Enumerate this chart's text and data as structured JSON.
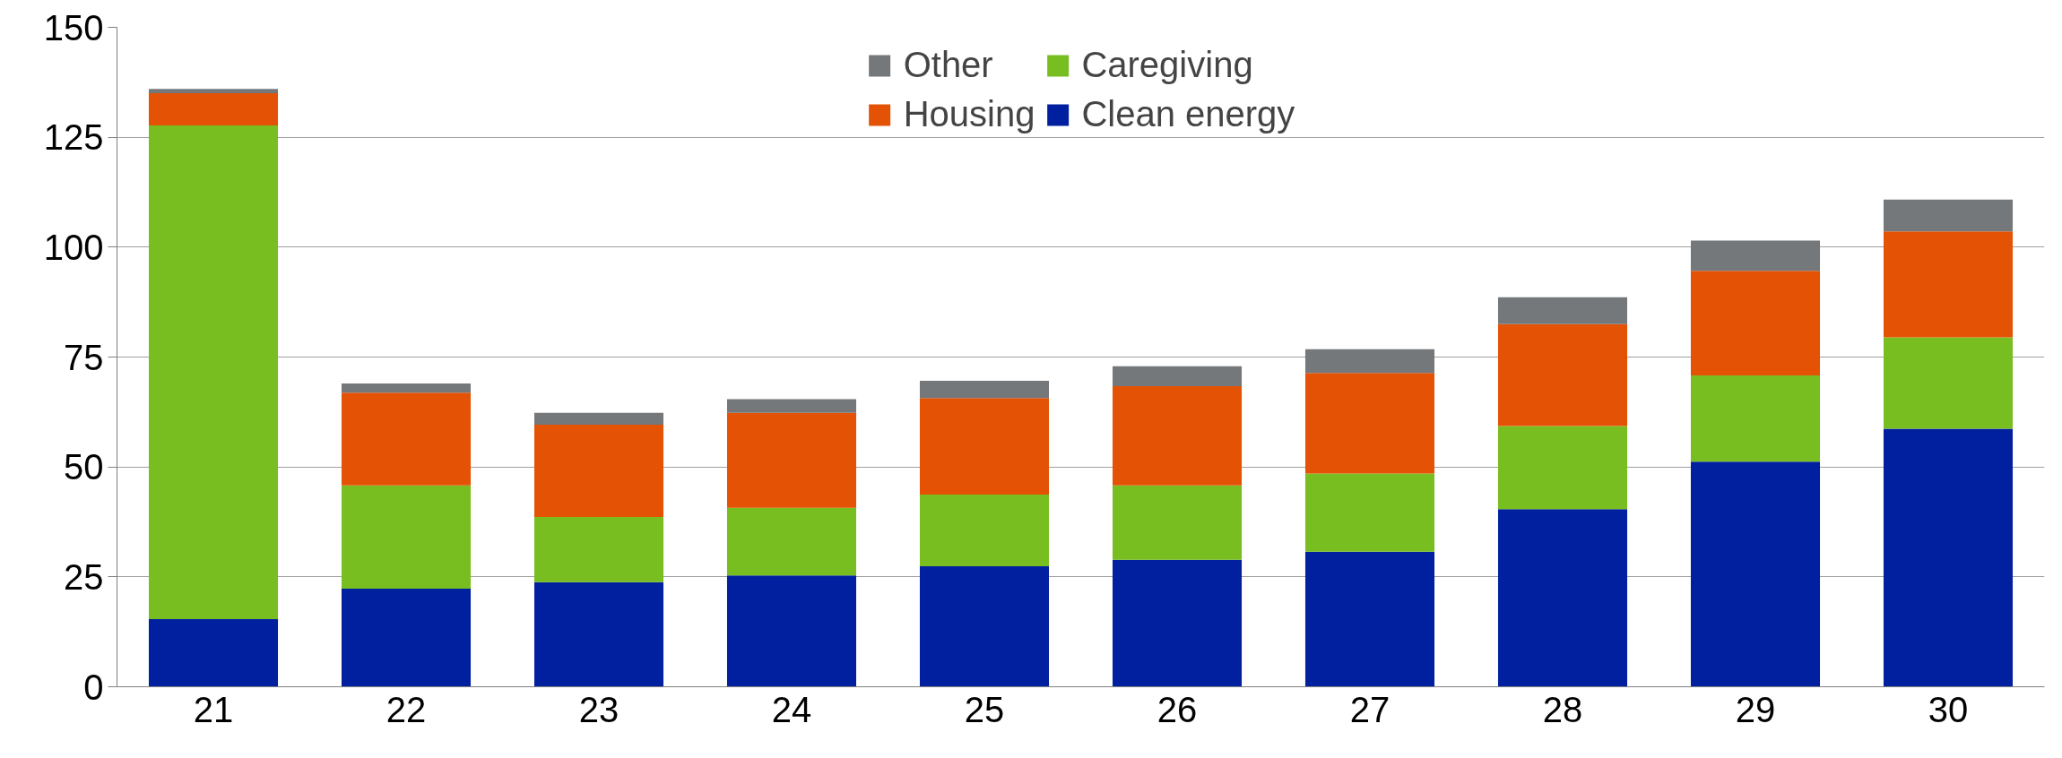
{
  "chart_data": {
    "type": "bar",
    "stacked": true,
    "categories": [
      "21",
      "22",
      "23",
      "24",
      "25",
      "26",
      "27",
      "28",
      "29",
      "30"
    ],
    "series": [
      {
        "name": "Clean energy",
        "color": "#00209f",
        "values": [
          15.4,
          22.3,
          23.8,
          25.3,
          27.4,
          28.9,
          30.7,
          40.4,
          51.2,
          58.7
        ]
      },
      {
        "name": "Caregiving",
        "color": "#78be20",
        "values": [
          112.3,
          23.5,
          14.8,
          15.4,
          16.3,
          16.9,
          17.8,
          18.9,
          19.6,
          20.8
        ]
      },
      {
        "name": "Housing",
        "color": "#e35205",
        "values": [
          7.3,
          21.1,
          21.0,
          21.6,
          22.0,
          22.6,
          22.9,
          23.2,
          23.8,
          24.1
        ]
      },
      {
        "name": "Other",
        "color": "#75787b",
        "values": [
          1.0,
          2.1,
          2.7,
          3.1,
          3.9,
          4.5,
          5.4,
          6.1,
          6.9,
          7.2
        ]
      }
    ],
    "ylim": [
      0,
      150
    ],
    "yticks": [
      0,
      25,
      50,
      75,
      100,
      125,
      150
    ],
    "grid": "y",
    "legend": "top"
  }
}
